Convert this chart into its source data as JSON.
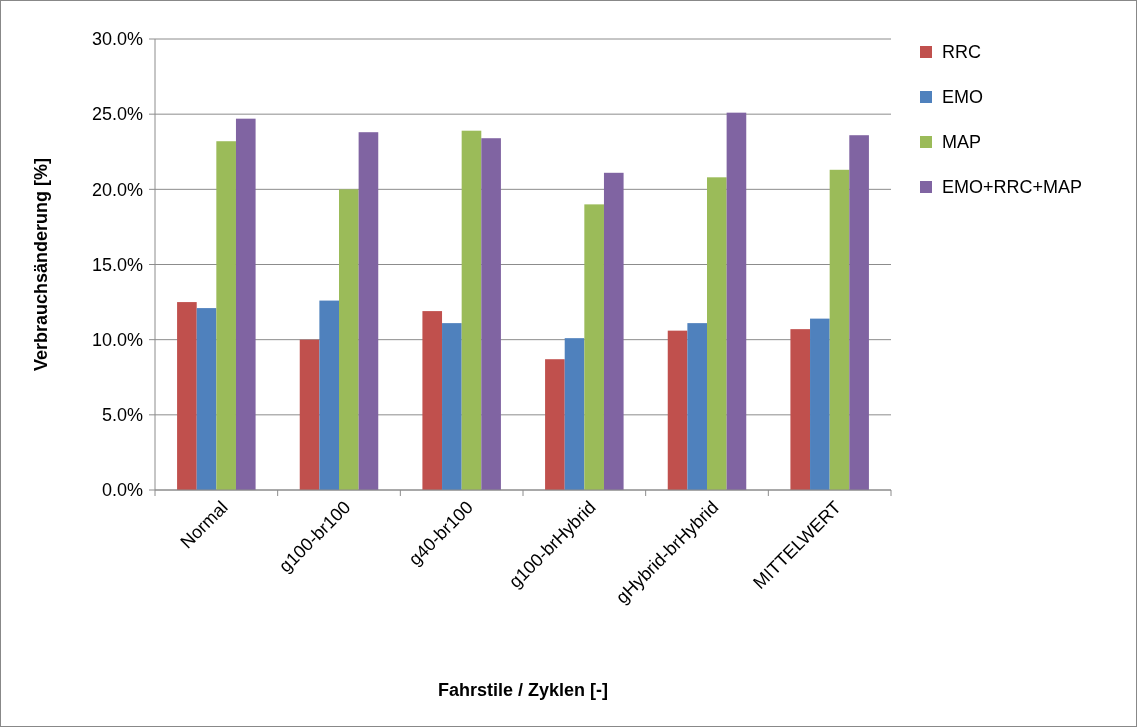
{
  "chart_data": {
    "type": "bar",
    "xlabel": "Fahrstile / Zyklen [-]",
    "ylabel": "Verbrauchsänderung [%]",
    "categories": [
      "Normal",
      "g100-br100",
      "g40-br100",
      "g100-brHybrid",
      "gHybrid-brHybrid",
      "MITTELWERT"
    ],
    "series": [
      {
        "name": "RRC",
        "color": "#c0504d",
        "values": [
          12.5,
          10.0,
          11.9,
          8.7,
          10.6,
          10.7
        ]
      },
      {
        "name": "EMO",
        "color": "#4f81bd",
        "values": [
          12.1,
          12.6,
          11.1,
          10.1,
          11.1,
          11.4
        ]
      },
      {
        "name": "MAP",
        "color": "#9bbb59",
        "values": [
          23.2,
          20.0,
          23.9,
          19.0,
          20.8,
          21.3
        ]
      },
      {
        "name": "EMO+RRC+MAP",
        "color": "#8064a2",
        "values": [
          24.7,
          23.8,
          23.4,
          21.1,
          25.1,
          23.6
        ]
      }
    ],
    "ylim": [
      0,
      30
    ],
    "yticks": [
      {
        "value": 0,
        "label": "0.0%"
      },
      {
        "value": 5,
        "label": "5.0%"
      },
      {
        "value": 10,
        "label": "10.0%"
      },
      {
        "value": 15,
        "label": "15.0%"
      },
      {
        "value": 20,
        "label": "20.0%"
      },
      {
        "value": 25,
        "label": "25.0%"
      },
      {
        "value": 30,
        "label": "30.0%"
      }
    ],
    "grid": "y",
    "legend": "right"
  }
}
